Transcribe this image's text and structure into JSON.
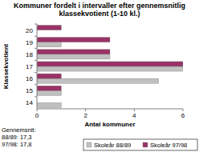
{
  "chart_data": {
    "type": "bar",
    "orientation": "horizontal",
    "title": "Kommuner fordelt i intervaller efter gennemsnitlig klassekvotient (1-10 kl.)",
    "x_label": "Antal kommuner",
    "y_label": "Klassekvotient",
    "categories": [
      "14",
      "15",
      "16",
      "17",
      "18",
      "19",
      "20"
    ],
    "series": [
      {
        "name": "Skoleår 88/89",
        "color": "#c0c0c0",
        "values": [
          1,
          1,
          5,
          6,
          3,
          1,
          0
        ]
      },
      {
        "name": "Skoleår 97/98",
        "color": "#993366",
        "values": [
          0,
          1,
          1,
          6,
          3,
          3,
          1
        ]
      }
    ],
    "xlim": [
      0,
      6
    ],
    "xticks": [
      0,
      2,
      4,
      6
    ],
    "grid": false,
    "legend": "bottom-right",
    "annotations": [
      "Gennemsnit:",
      "88/89: 17,3",
      "97/98: 17,8"
    ]
  }
}
